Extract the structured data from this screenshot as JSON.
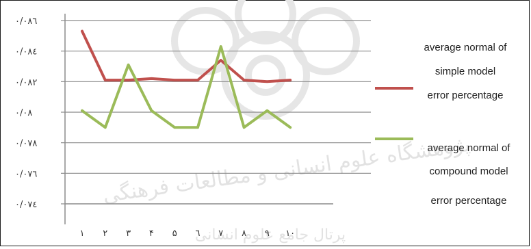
{
  "chart_data": {
    "type": "line",
    "categories": [
      "١",
      "٢",
      "٣",
      "۴",
      "۵",
      "٦",
      "٧",
      "٨",
      "٩",
      "١٠"
    ],
    "y_tick_labels": [
      "٠/٠٧٤",
      "٠/٠٧٦",
      "٠/٠٧٨",
      "٠/٠٨",
      "٠/٠٨٢",
      "٠/٠٨٤",
      "٠/٠٨٦"
    ],
    "y_ticks": [
      0.074,
      0.076,
      0.078,
      0.08,
      0.082,
      0.084,
      0.086
    ],
    "ylim": [
      0.074,
      0.086
    ],
    "grid": true,
    "legend_position": "right",
    "series": [
      {
        "name": "average normal of simple model error percentage",
        "legend_lines": [
          "average normal of",
          "simple model",
          "error percentage"
        ],
        "color": "#c0504d",
        "values": [
          0.0853,
          0.0821,
          0.0821,
          0.0822,
          0.0821,
          0.0821,
          0.0834,
          0.0821,
          0.082,
          0.0821
        ]
      },
      {
        "name": "average normal of compound model error percentage",
        "legend_lines": [
          "average normal of",
          "compound model",
          "error percentage"
        ],
        "color": "#9bbb59",
        "values": [
          0.0801,
          0.079,
          0.0831,
          0.0801,
          0.079,
          0.079,
          0.0843,
          0.079,
          0.0801,
          0.079
        ]
      }
    ]
  },
  "watermark": {
    "text": "پژوهشگاه علوم انسانی و مطالعات فرهنگی",
    "bottom_text": "پرتال جامع علوم انسانی",
    "color": "#e4e4e4"
  }
}
